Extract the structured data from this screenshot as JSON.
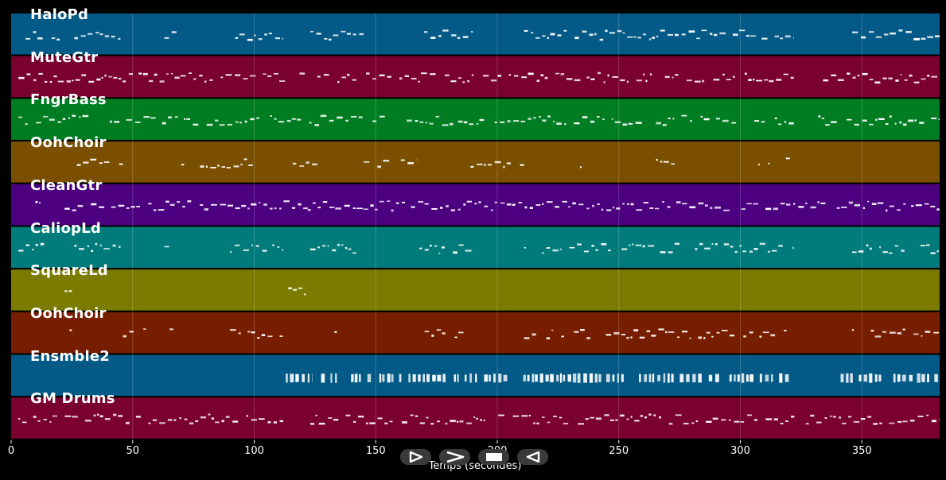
{
  "tracks": [
    {
      "name": "HaloPd",
      "color": "#045a86",
      "density": 0.9,
      "rows": 3,
      "segments": [
        [
          3,
          20
        ],
        [
          26,
          45
        ],
        [
          63,
          68
        ],
        [
          90,
          112
        ],
        [
          123,
          145
        ],
        [
          168,
          190
        ],
        [
          211,
          322
        ],
        [
          346,
          382
        ]
      ]
    },
    {
      "name": "MuteGtr",
      "color": "#7a0030",
      "density": 0.85,
      "rows": 2,
      "segments": [
        [
          3,
          115
        ],
        [
          115,
          322
        ],
        [
          334,
          382
        ]
      ]
    },
    {
      "name": "FngrBass",
      "color": "#007d22",
      "density": 0.8,
      "rows": 2,
      "segments": [
        [
          3,
          25
        ],
        [
          25,
          322
        ],
        [
          332,
          382
        ]
      ]
    },
    {
      "name": "OohChoir",
      "color": "#7a5000",
      "density": 0.7,
      "rows": 2,
      "segments": [
        [
          27,
          46
        ],
        [
          70,
          100
        ],
        [
          114,
          126
        ],
        [
          145,
          167
        ],
        [
          189,
          211
        ],
        [
          234,
          235
        ],
        [
          256,
          276
        ],
        [
          300,
          322
        ]
      ]
    },
    {
      "name": "CleanGtr",
      "color": "#4c0080",
      "density": 0.95,
      "rows": 3,
      "segments": [
        [
          10,
          12
        ],
        [
          22,
          122
        ],
        [
          122,
          382
        ]
      ]
    },
    {
      "name": "CaliopLd",
      "color": "#007b7b",
      "density": 0.9,
      "rows": 3,
      "segments": [
        [
          3,
          20
        ],
        [
          26,
          45
        ],
        [
          63,
          68
        ],
        [
          90,
          112
        ],
        [
          123,
          145
        ],
        [
          168,
          190
        ],
        [
          211,
          322
        ],
        [
          346,
          382
        ]
      ]
    },
    {
      "name": "SquareLd",
      "color": "#7b7b00",
      "density": 0.8,
      "rows": 2,
      "segments": [
        [
          22,
          25
        ],
        [
          114,
          122
        ]
      ]
    },
    {
      "name": "OohChoir",
      "color": "#781e00",
      "density": 0.75,
      "rows": 3,
      "segments": [
        [
          24,
          25
        ],
        [
          46,
          70
        ],
        [
          90,
          112
        ],
        [
          133,
          134
        ],
        [
          168,
          190
        ],
        [
          211,
          322
        ],
        [
          346,
          382
        ]
      ]
    },
    {
      "name": "Ensmble2",
      "color": "#045a86",
      "density": 0.7,
      "rows": 1,
      "segments": [
        [
          113,
          124
        ],
        [
          124,
          322
        ],
        [
          334,
          382
        ]
      ]
    },
    {
      "name": "GM Drums",
      "color": "#7a0030",
      "density": 0.9,
      "rows": 3,
      "segments": [
        [
          3,
          112
        ],
        [
          123,
          382
        ]
      ]
    }
  ],
  "axis": {
    "ticks": [
      "0",
      "50",
      "100",
      "150",
      "200",
      "250",
      "300",
      "350"
    ],
    "tick_values": [
      0,
      50,
      100,
      150,
      200,
      250,
      300,
      350
    ],
    "xlim": [
      0,
      382
    ],
    "label": "Temps (secondes)"
  },
  "transport": {
    "buttons": [
      {
        "name": "play-button",
        "icon": "play-icon"
      },
      {
        "name": "fast-forward-button",
        "icon": "fast-forward-icon"
      },
      {
        "name": "stop-button",
        "icon": "stop-icon"
      },
      {
        "name": "rewind-button",
        "icon": "rewind-icon"
      }
    ]
  }
}
